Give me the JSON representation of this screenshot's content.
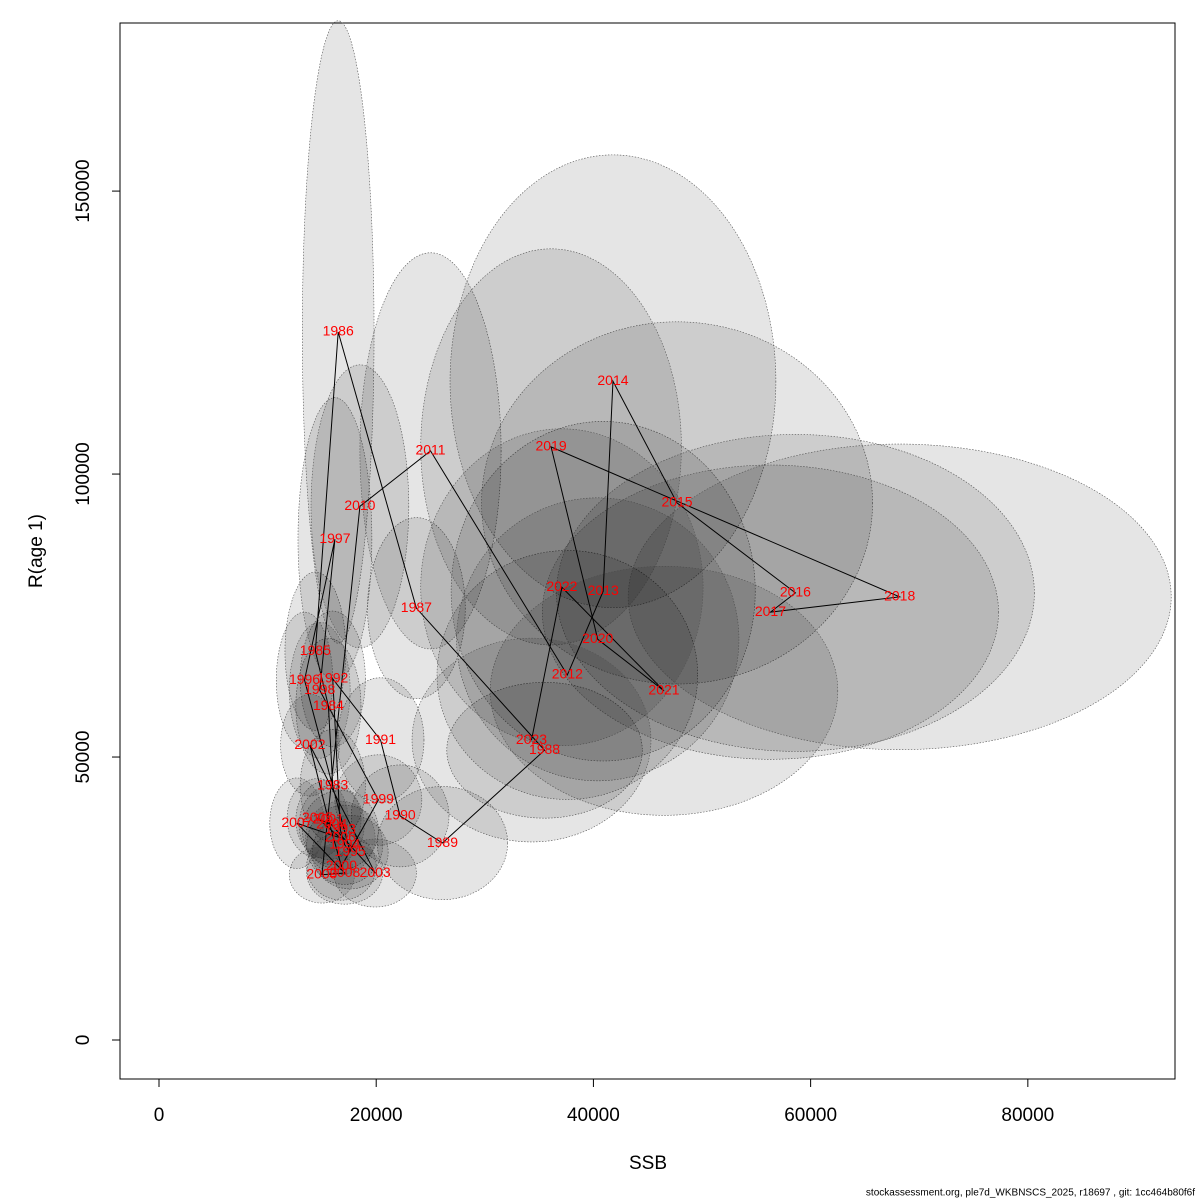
{
  "chart_data": {
    "type": "scatter",
    "x_label": "SSB",
    "y_label": "R(age 1)",
    "footer": "stockassessment.org, ple7d_WKBNSCS_2025, r18697 , git: 1cc464b80f6f",
    "xlim": [
      -3590,
      93550
    ],
    "ylim": [
      -6890,
      179700
    ],
    "xticks": [
      0,
      20000,
      40000,
      60000,
      80000
    ],
    "yticks": [
      0,
      50000,
      100000,
      150000
    ],
    "point_color": "#ff0000",
    "line_color": "#000000",
    "ellipse_color": "#000000",
    "labels": [
      "1983",
      "1984",
      "1985",
      "1986",
      "1987",
      "1988",
      "1989",
      "1990",
      "1991",
      "1992",
      "1993",
      "1994",
      "1995",
      "1996",
      "1997",
      "1998",
      "1999",
      "2000",
      "2001",
      "2002",
      "2003",
      "2004",
      "2005",
      "2006",
      "2007",
      "2008",
      "2009",
      "2010",
      "2011",
      "2012",
      "2013",
      "2014",
      "2015",
      "2016",
      "2017",
      "2018",
      "2019",
      "2020",
      "2021",
      "2022",
      "2023"
    ],
    "x": [
      16000,
      15600,
      14400,
      16500,
      23700,
      35500,
      26100,
      22200,
      20400,
      16000,
      16700,
      17100,
      17600,
      13400,
      16200,
      14800,
      20200,
      16800,
      15600,
      13900,
      19900,
      15900,
      14600,
      16700,
      12700,
      17100,
      15000,
      18500,
      25000,
      37600,
      40900,
      41800,
      47700,
      58600,
      56300,
      68200,
      36100,
      40400,
      46500,
      37100,
      34300
    ],
    "y": [
      44900,
      59000,
      68700,
      125100,
      76300,
      51200,
      34800,
      39600,
      53000,
      63800,
      37100,
      34500,
      33200,
      63600,
      88500,
      61800,
      42400,
      30700,
      38900,
      52100,
      29500,
      38000,
      39200,
      35700,
      38300,
      29500,
      29200,
      94300,
      104100,
      64500,
      79300,
      116400,
      94900,
      79000,
      75600,
      78300,
      104800,
      70800,
      61700,
      80000,
      53000
    ],
    "ellipse_x": [
      3000,
      3000,
      2800,
      3300,
      4500,
      9000,
      6000,
      4500,
      4000,
      3000,
      3500,
      3500,
      3500,
      2600,
      3400,
      2800,
      4000,
      3200,
      3000,
      2700,
      3800,
      3000,
      2800,
      3200,
      2500,
      3500,
      3000,
      4500,
      6500,
      12000,
      14000,
      15000,
      18000,
      22000,
      21000,
      25000,
      12000,
      13000,
      16000,
      13000,
      11000
    ],
    "ellipse_y": [
      10000,
      12000,
      14000,
      55000,
      16000,
      12000,
      10000,
      9000,
      11000,
      12000,
      7000,
      7000,
      6500,
      12000,
      25000,
      12000,
      8000,
      6000,
      7000,
      9000,
      6000,
      7000,
      7000,
      6500,
      8000,
      5500,
      5000,
      25000,
      35000,
      22000,
      30000,
      40000,
      32000,
      28000,
      26000,
      27000,
      35000,
      25000,
      22000,
      28000,
      18000
    ]
  }
}
